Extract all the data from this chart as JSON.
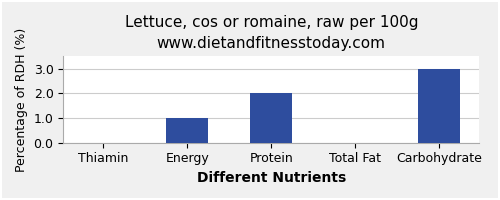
{
  "title": "Lettuce, cos or romaine, raw per 100g",
  "subtitle": "www.dietandfitnesstoday.com",
  "xlabel": "Different Nutrients",
  "ylabel": "Percentage of RDH (%)",
  "categories": [
    "Thiamin",
    "Energy",
    "Protein",
    "Total Fat",
    "Carbohydrate"
  ],
  "values": [
    0.0,
    1.0,
    2.0,
    0.0,
    3.0
  ],
  "bar_color": "#2e4d9e",
  "ylim": [
    0,
    3.5
  ],
  "yticks": [
    0.0,
    1.0,
    2.0,
    3.0
  ],
  "background_color": "#f0f0f0",
  "plot_bg_color": "#ffffff",
  "title_fontsize": 11,
  "subtitle_fontsize": 9,
  "xlabel_fontsize": 10,
  "ylabel_fontsize": 9,
  "tick_fontsize": 9
}
